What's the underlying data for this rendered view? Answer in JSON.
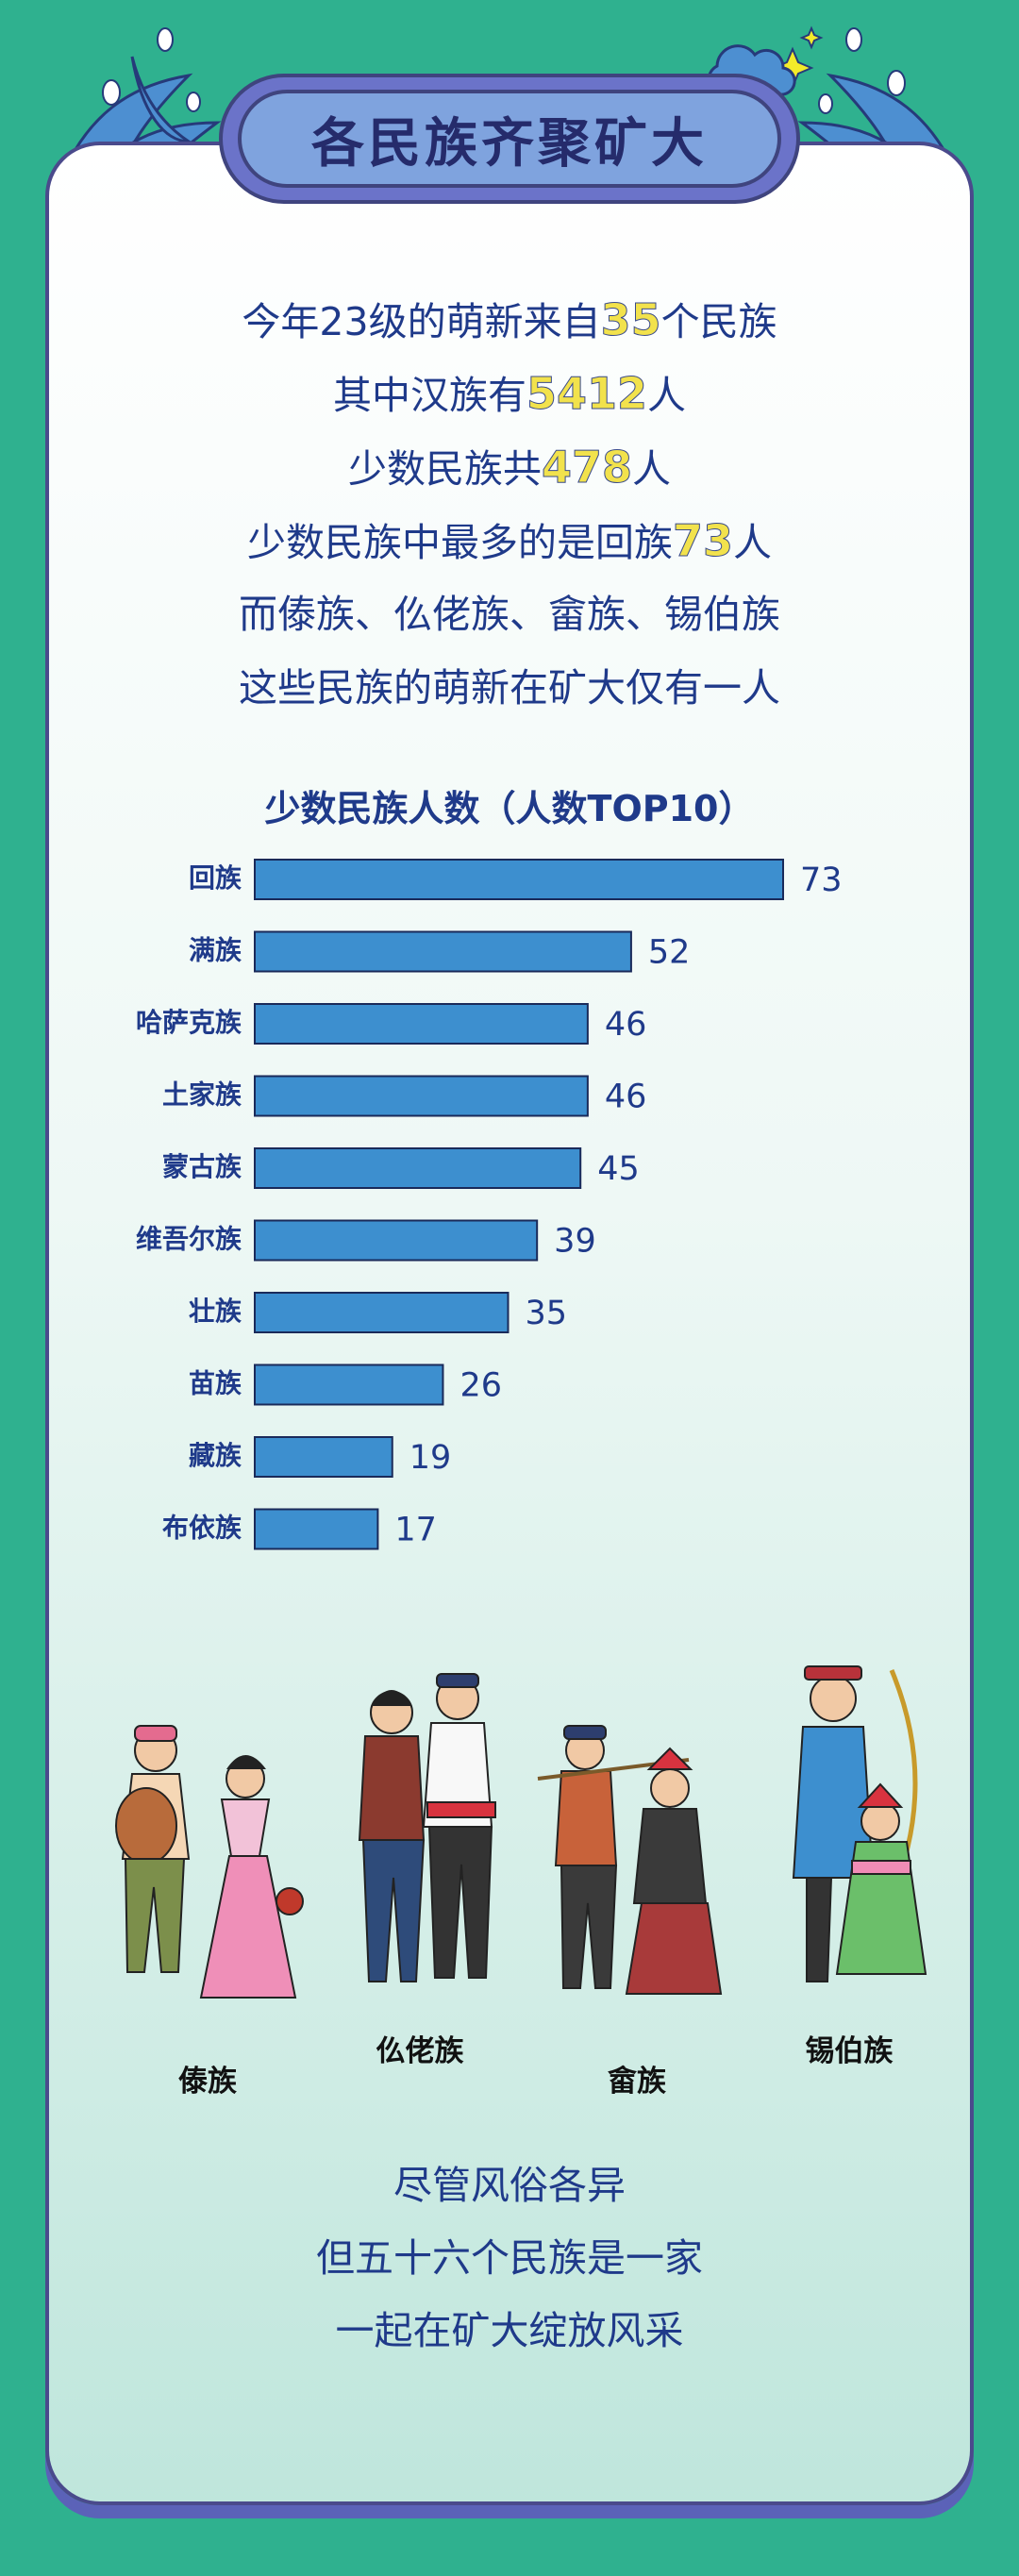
{
  "banner": {
    "title": "各民族齐聚矿大"
  },
  "intro": {
    "line1_pre": "今年23级的萌新来自",
    "line1_num": "35",
    "line1_post": "个民族",
    "line2_pre": "其中汉族有",
    "line2_num": "5412",
    "line2_post": "人",
    "line3_pre": "少数民族共",
    "line3_num": "478",
    "line3_post": "人",
    "line4_pre": "少数民族中最多的是回族",
    "line4_num": "73",
    "line4_post": "人",
    "line5": "而傣族、仫佬族、畲族、锡伯族",
    "line6": "这些民族的萌新在矿大仅有一人"
  },
  "chart_data": {
    "type": "bar",
    "orientation": "horizontal",
    "title": "少数民族人数（人数TOP10）",
    "categories": [
      "回族",
      "满族",
      "哈萨克族",
      "土家族",
      "蒙古族",
      "维吾尔族",
      "壮族",
      "苗族",
      "藏族",
      "布依族"
    ],
    "values": [
      73,
      52,
      46,
      46,
      45,
      39,
      35,
      26,
      19,
      17
    ],
    "bar_color": "#3d8fcf",
    "xlim": [
      0,
      73
    ]
  },
  "ethnic_groups": {
    "dai": "傣族",
    "mulao": "仫佬族",
    "she": "畲族",
    "xibe": "锡伯族"
  },
  "closing": {
    "line1": "尽管风俗各异",
    "line2": "但五十六个民族是一家",
    "line3": "一起在矿大绽放风采"
  },
  "colors": {
    "background": "#2fb18f",
    "text_blue": "#1f3a8a",
    "highlight_yellow": "#f2e24c",
    "banner_purple": "#6b73c9"
  }
}
